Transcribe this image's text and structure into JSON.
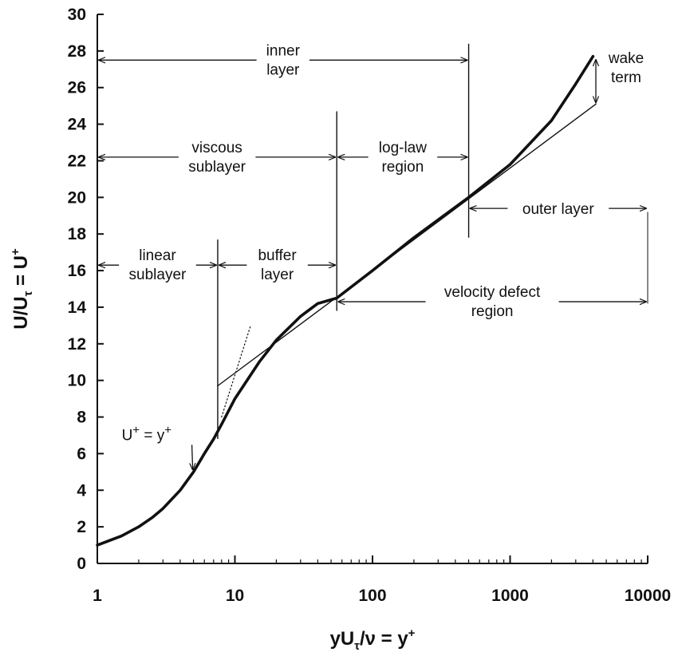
{
  "chart_data": {
    "type": "line",
    "x_scale": "log",
    "xlim": [
      1,
      10000
    ],
    "ylim": [
      0,
      30
    ],
    "x_ticks": [
      1,
      10,
      100,
      1000,
      10000
    ],
    "x_tick_labels": [
      "1",
      "10",
      "100",
      "1000",
      "10000"
    ],
    "y_ticks": [
      0,
      2,
      4,
      6,
      8,
      10,
      12,
      14,
      16,
      18,
      20,
      22,
      24,
      26,
      28,
      30
    ],
    "y_tick_labels": [
      "0",
      "2",
      "4",
      "6",
      "8",
      "10",
      "12",
      "14",
      "16",
      "18",
      "20",
      "22",
      "24",
      "26",
      "28",
      "30"
    ],
    "xlabel": {
      "main": "yU",
      "sub": "τ",
      "rest": "/ν = y",
      "sup": "+"
    },
    "ylabel": {
      "main": "U/U",
      "sub": "τ",
      "rest": " = U",
      "sup": "+"
    },
    "grid": false,
    "series": [
      {
        "style": "thick",
        "x": [
          1,
          1.5,
          2,
          2.5,
          3,
          4,
          5,
          6,
          7,
          8,
          10,
          15,
          20,
          30,
          40,
          55,
          100,
          200,
          500,
          1000,
          2000,
          3000,
          4000
        ],
        "y": [
          1,
          1.5,
          2,
          2.5,
          3,
          4,
          5,
          6,
          6.8,
          7.6,
          9.0,
          11.0,
          12.2,
          13.5,
          14.2,
          14.5,
          16.0,
          17.8,
          20.0,
          21.8,
          24.2,
          26.2,
          27.7
        ]
      },
      {
        "style": "thin-log-law",
        "x": [
          7.5,
          4200
        ],
        "y": [
          9.7,
          25.1
        ]
      },
      {
        "style": "dotted-linear",
        "x": [
          8,
          13
        ],
        "y": [
          8,
          13
        ]
      }
    ],
    "boundaries": [
      {
        "x": 7.5,
        "y0": 6.8,
        "y1": 17.7
      },
      {
        "x": 55,
        "y0": 13.8,
        "y1": 24.7
      },
      {
        "x": 500,
        "y0": 17.8,
        "y1": 28.4
      }
    ],
    "region_labels": [
      {
        "line1": "inner",
        "line2": "layer",
        "x_from": 1,
        "x_to": 500,
        "y": 27.5
      },
      {
        "line1": "viscous",
        "line2": "sublayer",
        "x_from": 1,
        "x_to": 55,
        "y": 22.2
      },
      {
        "line1": "log-law",
        "line2": "region",
        "x_from": 55,
        "x_to": 500,
        "y": 22.2
      },
      {
        "line1": "linear",
        "line2": "sublayer",
        "x_from": 1,
        "x_to": 7.5,
        "y": 16.3
      },
      {
        "line1": "buffer",
        "line2": "layer",
        "x_from": 7.5,
        "x_to": 55,
        "y": 16.3
      },
      {
        "line1": "outer layer",
        "line2": "",
        "x_from": 500,
        "x_to": 10000,
        "y": 19.4
      },
      {
        "line1": "velocity defect",
        "line2": "region",
        "x_from": 55,
        "x_to": 10000,
        "y": 14.3
      }
    ],
    "annotations": [
      {
        "text": "wake",
        "text2": "term",
        "x": 4200,
        "y0": 27.6,
        "y1": 25.1
      },
      {
        "text": "U",
        "sup": "+",
        "rest": " = y",
        "sup2": "+",
        "arrow_to_x": 5,
        "arrow_to_y": 5
      }
    ]
  }
}
